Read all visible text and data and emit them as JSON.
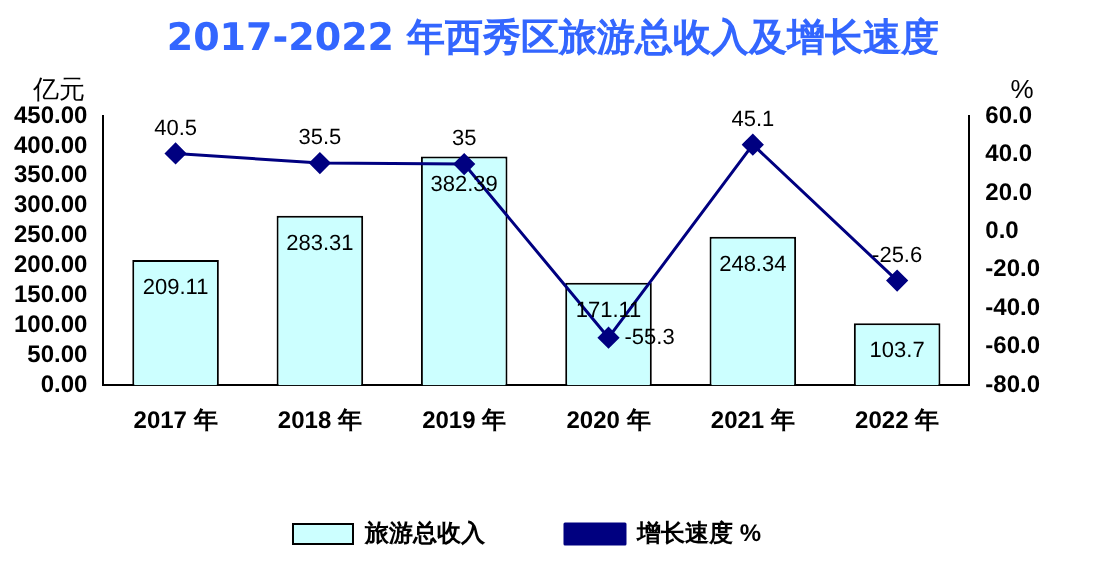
{
  "chart_data": {
    "type": "bar",
    "title": "2017-2022 年西秀区旅游总收入及增长速度",
    "ylabel": "亿元",
    "y2label": "%",
    "categories": [
      "2017 年",
      "2018 年",
      "2019 年",
      "2020 年",
      "2021 年",
      "2022 年"
    ],
    "series": [
      {
        "name": "旅游总收入",
        "color": "#ccffff",
        "values": [
          209.11,
          283.31,
          382.39,
          171.11,
          248.34,
          103.7
        ]
      },
      {
        "name": "增长速度 %",
        "type": "line",
        "axis": "y2",
        "color": "#000080",
        "marker": "diamond",
        "values": [
          40.5,
          35.5,
          35,
          -55.3,
          45.1,
          -25.6
        ]
      }
    ],
    "ylim": [
      0,
      450
    ],
    "yticks": [
      {
        "value": 0,
        "label": "0.00"
      },
      {
        "value": 50,
        "label": "50.00"
      },
      {
        "value": 100,
        "label": "100.00"
      },
      {
        "value": 150,
        "label": "150.00"
      },
      {
        "value": 200,
        "label": "200.00"
      },
      {
        "value": 250,
        "label": "250.00"
      },
      {
        "value": 300,
        "label": "300.00"
      },
      {
        "value": 350,
        "label": "350.00"
      },
      {
        "value": 400,
        "label": "400.00"
      },
      {
        "value": 450,
        "label": "450.00"
      }
    ],
    "y2lim": [
      -80,
      60
    ],
    "y2ticks": [
      {
        "value": -80,
        "label": "-80.0"
      },
      {
        "value": -60,
        "label": "-60.0"
      },
      {
        "value": -40,
        "label": "-40.0"
      },
      {
        "value": -20,
        "label": "-20.0"
      },
      {
        "value": 0,
        "label": "0.0"
      },
      {
        "value": 20,
        "label": "20.0"
      },
      {
        "value": 40,
        "label": "40.0"
      },
      {
        "value": 60,
        "label": "60.0"
      }
    ],
    "data_labels": true,
    "grid": false,
    "legend": "bottom"
  }
}
